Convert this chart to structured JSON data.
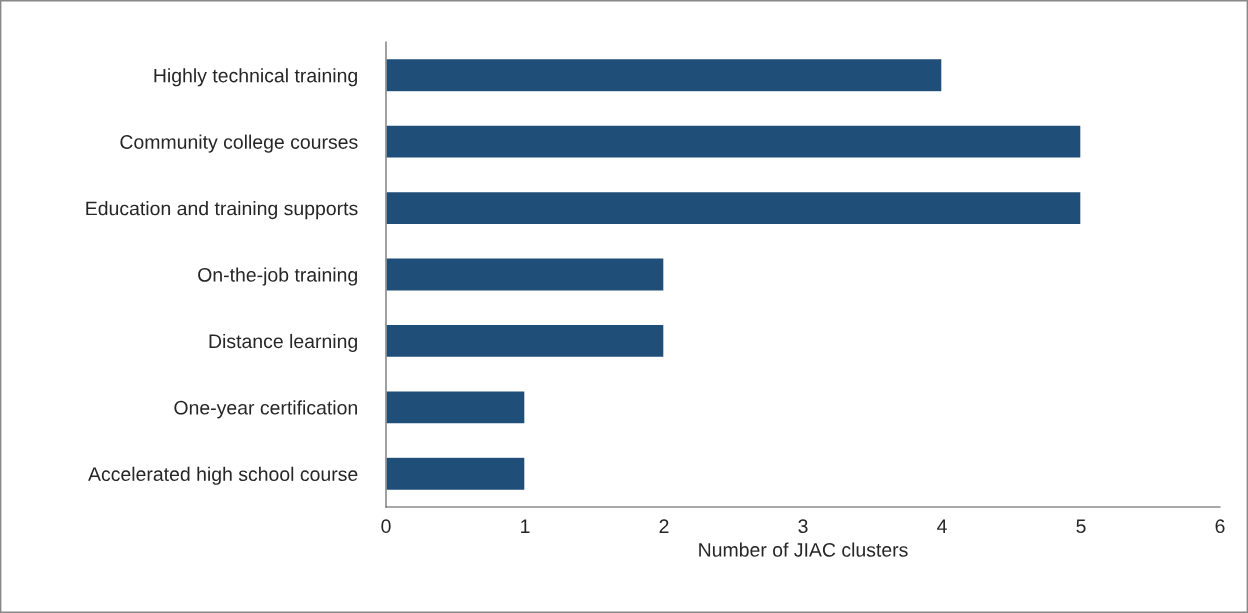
{
  "chart_data": {
    "type": "bar",
    "orientation": "horizontal",
    "xlabel": "Number of JIAC clusters",
    "categories": [
      "Highly technical training",
      "Community college courses",
      "Education and training supports",
      "On-the-job training",
      "Distance learning",
      "One-year certification",
      "Accelerated high school course"
    ],
    "values": [
      4,
      5,
      5,
      2,
      2,
      1,
      1
    ],
    "color": "#1f4e79",
    "xlim": [
      0,
      6
    ],
    "xticks": [
      0,
      1,
      2,
      3,
      4,
      5,
      6
    ],
    "grid": false,
    "legend": false
  }
}
